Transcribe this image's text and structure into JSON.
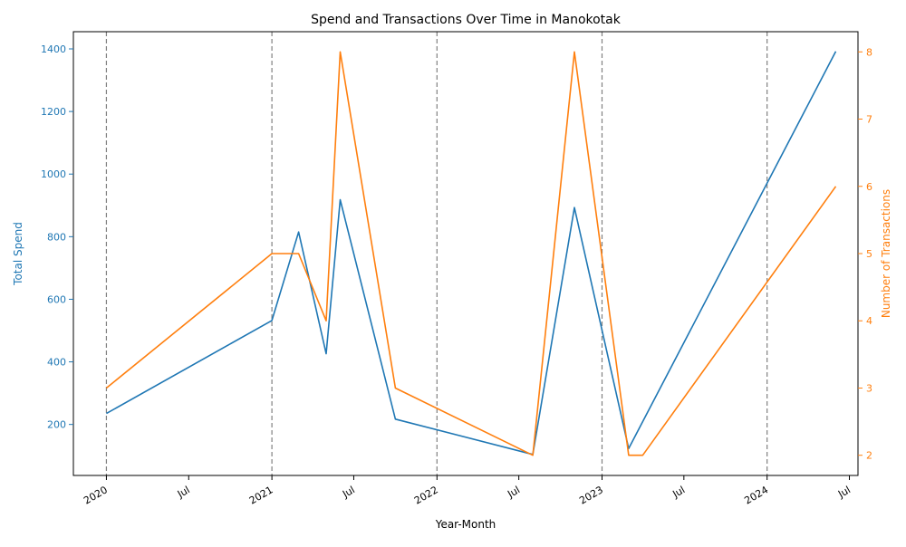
{
  "chart_data": {
    "type": "line",
    "title": "Spend and Transactions Over Time in Manokotak",
    "xlabel": "Year-Month",
    "ylabel_left": "Total Spend",
    "ylabel_right": "Number of Transactions",
    "x_ticks": [
      {
        "date": "2020-01-01",
        "label": "2020"
      },
      {
        "date": "2020-07-01",
        "label": "Jul"
      },
      {
        "date": "2021-01-01",
        "label": "2021"
      },
      {
        "date": "2021-07-01",
        "label": "Jul"
      },
      {
        "date": "2022-01-01",
        "label": "2022"
      },
      {
        "date": "2022-07-01",
        "label": "Jul"
      },
      {
        "date": "2023-01-01",
        "label": "2023"
      },
      {
        "date": "2023-07-01",
        "label": "Jul"
      },
      {
        "date": "2024-01-01",
        "label": "2024"
      },
      {
        "date": "2024-07-01",
        "label": "Jul"
      }
    ],
    "year_lines": [
      "2020-01-01",
      "2021-01-01",
      "2022-01-01",
      "2023-01-01",
      "2024-01-01"
    ],
    "x_range": [
      "2019-10-20",
      "2024-07-20"
    ],
    "y_left_range": [
      37,
      1455
    ],
    "y_left_ticks": [
      200,
      400,
      600,
      800,
      1000,
      1200,
      1400
    ],
    "y_right_range": [
      1.7,
      8.3
    ],
    "y_right_ticks": [
      2,
      3,
      4,
      5,
      6,
      7,
      8
    ],
    "grid": false,
    "vertical_year_lines": true,
    "colors": {
      "spend": "#1f77b4",
      "transactions": "#ff7f0e",
      "year_line": "#808080"
    },
    "series": [
      {
        "axis": "left",
        "x": [
          "2020-01-01",
          "2021-01-01",
          "2021-03-01",
          "2021-05-01",
          "2021-06-01",
          "2021-10-01",
          "2022-08-01",
          "2022-11-01",
          "2023-03-01",
          "2024-06-01"
        ],
        "values": [
          235,
          532,
          815,
          426,
          918,
          217,
          104,
          893,
          123,
          1392
        ]
      },
      {
        "axis": "right",
        "x": [
          "2020-01-01",
          "2021-01-01",
          "2021-03-01",
          "2021-05-01",
          "2021-06-01",
          "2021-10-01",
          "2022-08-01",
          "2022-11-01",
          "2023-03-01",
          "2023-04-01",
          "2024-06-01"
        ],
        "values": [
          3,
          5,
          5,
          4,
          8,
          3,
          2,
          8,
          2,
          2,
          6
        ]
      }
    ]
  }
}
